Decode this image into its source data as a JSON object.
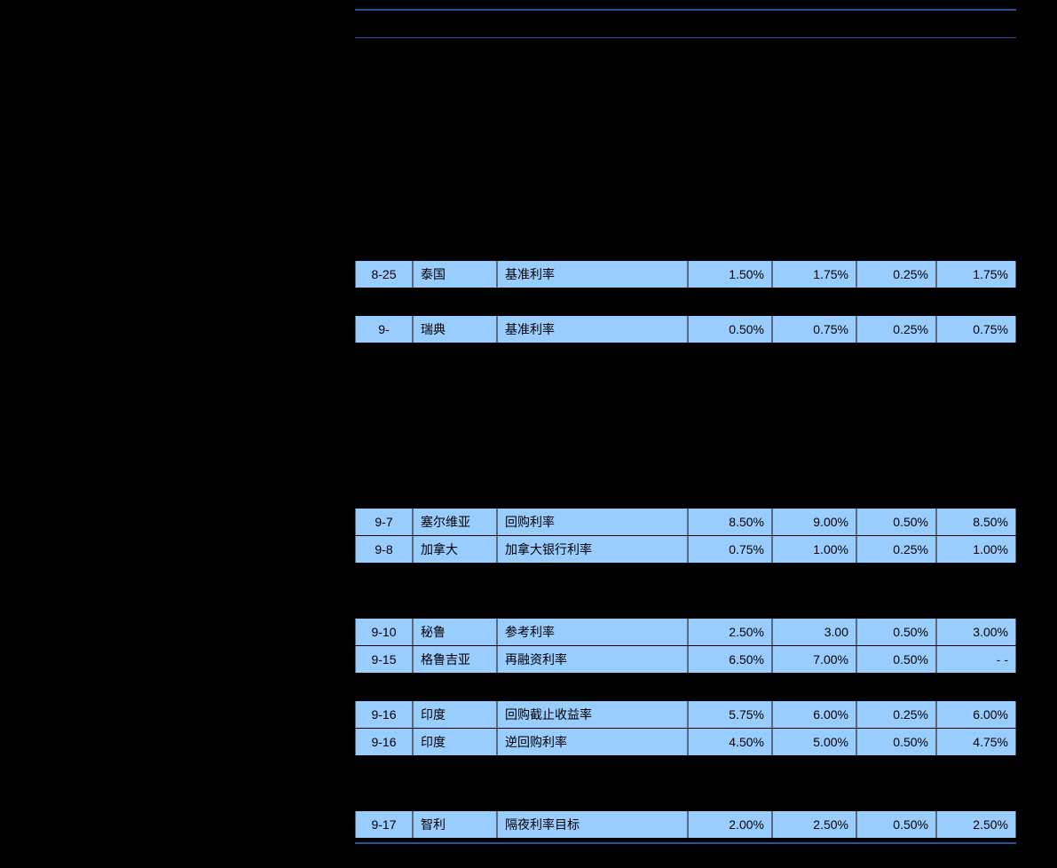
{
  "table": {
    "header_border_color": "#2a5599",
    "cell_border_color": "#5a6a7a",
    "highlight_bg": "#99ccff",
    "text_color": "#000000",
    "columns": [
      "date",
      "country",
      "item",
      "prev",
      "curr",
      "chg",
      "exp"
    ],
    "rows": [
      {
        "hl": false,
        "date": "",
        "country": "",
        "item": "",
        "prev": "",
        "curr": "",
        "chg": "",
        "exp": ""
      },
      {
        "hl": false,
        "date": "",
        "country": "",
        "item": "",
        "prev": "",
        "curr": "",
        "chg": "",
        "exp": ""
      },
      {
        "hl": false,
        "date": "",
        "country": "",
        "item": "",
        "prev": "",
        "curr": "",
        "chg": "",
        "exp": ""
      },
      {
        "hl": false,
        "date": "",
        "country": "",
        "item": "",
        "prev": "",
        "curr": "",
        "chg": "",
        "exp": ""
      },
      {
        "hl": false,
        "date": "",
        "country": "",
        "item": "",
        "prev": "",
        "curr": "",
        "chg": "",
        "exp": ""
      },
      {
        "hl": false,
        "date": "",
        "country": "",
        "item": "",
        "prev": "",
        "curr": "",
        "chg": "",
        "exp": ""
      },
      {
        "hl": false,
        "date": "",
        "country": "",
        "item": "",
        "prev": "",
        "curr": "",
        "chg": "",
        "exp": ""
      },
      {
        "hl": false,
        "date": "",
        "country": "",
        "item": "",
        "prev": "",
        "curr": "",
        "chg": "",
        "exp": ""
      },
      {
        "hl": true,
        "date": "8-25",
        "country": "泰国",
        "item": "基准利率",
        "prev": "1.50%",
        "curr": "1.75%",
        "chg": "0.25%",
        "exp": "1.75%"
      },
      {
        "hl": false,
        "date": "",
        "country": "",
        "item": "",
        "prev": "",
        "curr": "",
        "chg": "",
        "exp": ""
      },
      {
        "hl": true,
        "date": "9-",
        "country": "瑞典",
        "item": "基准利率",
        "prev": "0.50%",
        "curr": "0.75%",
        "chg": "0.25%",
        "exp": "0.75%"
      },
      {
        "hl": false,
        "date": "",
        "country": "",
        "item": "",
        "prev": "",
        "curr": "",
        "chg": "",
        "exp": ""
      },
      {
        "hl": false,
        "date": "",
        "country": "",
        "item": "",
        "prev": "",
        "curr": "",
        "chg": "",
        "exp": ""
      },
      {
        "hl": false,
        "date": "",
        "country": "",
        "item": "",
        "prev": "",
        "curr": "",
        "chg": "",
        "exp": ""
      },
      {
        "hl": false,
        "date": "",
        "country": "",
        "item": "",
        "prev": "",
        "curr": "",
        "chg": "",
        "exp": ""
      },
      {
        "hl": false,
        "date": "",
        "country": "",
        "item": "",
        "prev": "",
        "curr": "",
        "chg": "",
        "exp": ""
      },
      {
        "hl": false,
        "date": "",
        "country": "",
        "item": "",
        "prev": "",
        "curr": "",
        "chg": "",
        "exp": ""
      },
      {
        "hl": true,
        "date": "9-7",
        "country": "塞尔维亚",
        "item": "回购利率",
        "prev": "8.50%",
        "curr": "9.00%",
        "chg": "0.50%",
        "exp": "8.50%"
      },
      {
        "hl": true,
        "date": "9-8",
        "country": "加拿大",
        "item": "加拿大银行利率",
        "prev": "0.75%",
        "curr": "1.00%",
        "chg": "0.25%",
        "exp": "1.00%"
      },
      {
        "hl": false,
        "date": "",
        "country": "",
        "item": "",
        "prev": "",
        "curr": "",
        "chg": "",
        "exp": ""
      },
      {
        "hl": false,
        "date": "",
        "country": "",
        "item": "",
        "prev": "",
        "curr": "",
        "chg": "",
        "exp": ""
      },
      {
        "hl": true,
        "date": "9-10",
        "country": "秘鲁",
        "item": "参考利率",
        "prev": "2.50%",
        "curr": "3.00",
        "chg": "0.50%",
        "exp": "3.00%"
      },
      {
        "hl": true,
        "date": "9-15",
        "country": "格鲁吉亚",
        "item": "再融资利率",
        "prev": "6.50%",
        "curr": "7.00%",
        "chg": "0.50%",
        "exp": "- -"
      },
      {
        "hl": false,
        "date": "",
        "country": "",
        "item": "",
        "prev": "",
        "curr": "",
        "chg": "",
        "exp": ""
      },
      {
        "hl": true,
        "date": "9-16",
        "country": "印度",
        "item": "回购截止收益率",
        "prev": "5.75%",
        "curr": "6.00%",
        "chg": "0.25%",
        "exp": "6.00%"
      },
      {
        "hl": true,
        "date": "9-16",
        "country": "印度",
        "item": "逆回购利率",
        "prev": "4.50%",
        "curr": "5.00%",
        "chg": "0.50%",
        "exp": "4.75%"
      },
      {
        "hl": false,
        "date": "",
        "country": "",
        "item": "",
        "prev": "",
        "curr": "",
        "chg": "",
        "exp": ""
      },
      {
        "hl": false,
        "date": "",
        "country": "",
        "item": "",
        "prev": "",
        "curr": "",
        "chg": "",
        "exp": ""
      },
      {
        "hl": true,
        "date": "9-17",
        "country": "智利",
        "item": "隔夜利率目标",
        "prev": "2.00%",
        "curr": "2.50%",
        "chg": "0.50%",
        "exp": "2.50%"
      }
    ]
  }
}
